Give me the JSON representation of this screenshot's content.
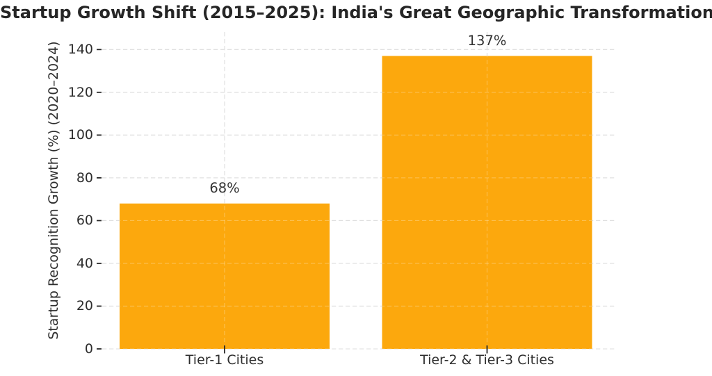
{
  "chart_data": {
    "type": "bar",
    "title": "Startup Growth Shift (2015–2025): India's Great Geographic Transformation",
    "xlabel": "",
    "ylabel": "Startup Recognition Growth (%) (2020–2024)",
    "categories": [
      "Tier-1 Cities",
      "Tier-2 & Tier-3 Cities"
    ],
    "values": [
      68,
      137
    ],
    "value_labels": [
      "68%",
      "137%"
    ],
    "yticks": [
      0,
      20,
      40,
      60,
      80,
      100,
      120,
      140
    ],
    "ylim": [
      0,
      148
    ],
    "grid": true,
    "grid_style": "dashed",
    "legend": null,
    "colors": {
      "bar": "#FCA300",
      "grid": "#cbcbcb",
      "tick_mark": "#262626",
      "tick_text": "#2e2e2e",
      "value_text": "#333333",
      "title_text": "#262626",
      "background": "#ffffff"
    }
  }
}
